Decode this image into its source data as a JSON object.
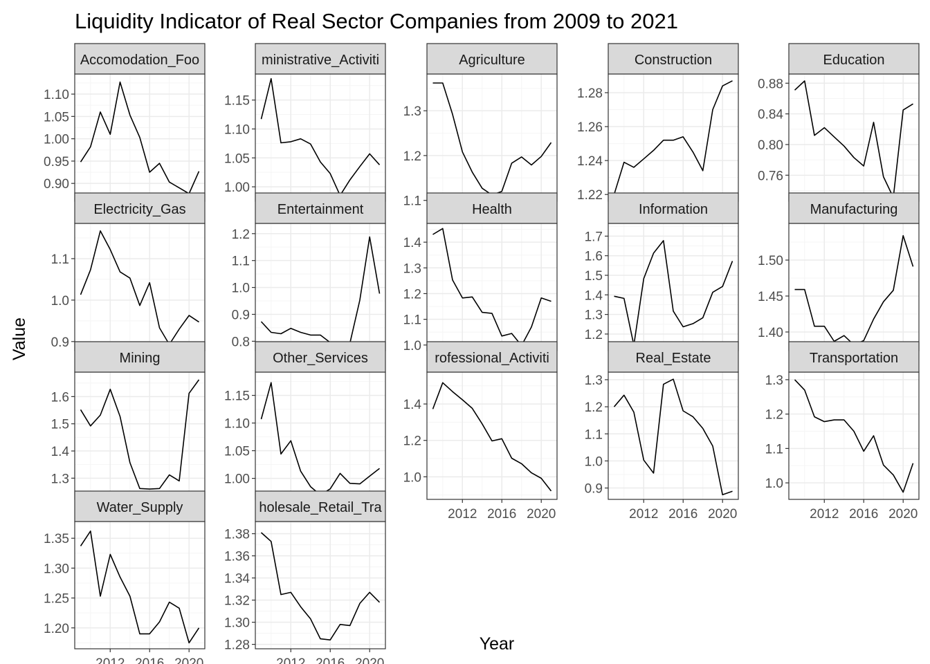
{
  "chart_data": {
    "type": "line",
    "title": "Liquidity Indicator of Real Sector Companies from 2009 to 2021",
    "xlabel": "Year",
    "ylabel": "Value",
    "x": [
      2009,
      2010,
      2011,
      2012,
      2013,
      2014,
      2015,
      2016,
      2017,
      2018,
      2019,
      2020,
      2021
    ],
    "xlim": [
      2008.4,
      2021.6
    ],
    "x_ticks": [
      "2012",
      "2016",
      "2020"
    ],
    "grid": true,
    "legend": "none",
    "colors": {
      "line": "#000000",
      "panel_border": "#333333",
      "strip_fill": "#d9d9d9",
      "grid_major": "#ebebeb",
      "grid_minor": "#f5f5f5"
    },
    "panels": [
      {
        "name": "Accomodation_Food",
        "strip_text": "Accomodation_Foo",
        "ylim": [
          0.86,
          1.145
        ],
        "y_ticks": [
          "0.90",
          "0.95",
          "1.00",
          "1.05",
          "1.10"
        ],
        "values": [
          0.948,
          0.982,
          1.06,
          1.01,
          1.127,
          1.053,
          1.003,
          0.925,
          0.945,
          0.903,
          0.89,
          0.877,
          0.927
        ]
      },
      {
        "name": "Administrative_Activities",
        "strip_text": "ministrative_Activiti",
        "ylim": [
          0.975,
          1.195
        ],
        "y_ticks": [
          "1.00",
          "1.05",
          "1.10",
          "1.15"
        ],
        "values": [
          1.117,
          1.187,
          1.076,
          1.078,
          1.083,
          1.074,
          1.043,
          1.023,
          0.985,
          1.012,
          1.035,
          1.057,
          1.038
        ]
      },
      {
        "name": "Agriculture",
        "strip_text": "Agriculture",
        "ylim": [
          1.098,
          1.382
        ],
        "y_ticks": [
          "1.1",
          "1.2",
          "1.3"
        ],
        "values": [
          1.362,
          1.362,
          1.292,
          1.208,
          1.163,
          1.127,
          1.112,
          1.12,
          1.183,
          1.197,
          1.179,
          1.198,
          1.229
        ]
      },
      {
        "name": "Construction",
        "strip_text": "Construction",
        "ylim": [
          1.216,
          1.291
        ],
        "y_ticks": [
          "1.22",
          "1.24",
          "1.26",
          "1.28"
        ],
        "values": [
          1.22,
          1.239,
          1.236,
          1.241,
          1.246,
          1.252,
          1.252,
          1.254,
          1.245,
          1.234,
          1.27,
          1.284,
          1.287
        ]
      },
      {
        "name": "Education",
        "strip_text": "Education",
        "ylim": [
          0.726,
          0.892
        ],
        "y_ticks": [
          "0.76",
          "0.80",
          "0.84",
          "0.88"
        ],
        "values": [
          0.871,
          0.883,
          0.812,
          0.822,
          0.81,
          0.798,
          0.783,
          0.772,
          0.829,
          0.758,
          0.731,
          0.845,
          0.853
        ]
      },
      {
        "name": "Electricity_Gas",
        "strip_text": "Electricity_Gas",
        "ylim": [
          0.878,
          1.185
        ],
        "y_ticks": [
          "0.9",
          "1.0",
          "1.1"
        ],
        "values": [
          1.013,
          1.073,
          1.167,
          1.122,
          1.068,
          1.053,
          0.987,
          1.042,
          0.933,
          0.893,
          0.93,
          0.963,
          0.947
        ]
      },
      {
        "name": "Entertainment",
        "strip_text": "Entertainment",
        "ylim": [
          0.765,
          1.238
        ],
        "y_ticks": [
          "0.8",
          "0.9",
          "1.0",
          "1.1",
          "1.2"
        ],
        "values": [
          0.873,
          0.833,
          0.828,
          0.848,
          0.833,
          0.823,
          0.823,
          0.795,
          0.796,
          0.793,
          0.953,
          1.188,
          0.977
        ]
      },
      {
        "name": "Health",
        "strip_text": "Health",
        "ylim": [
          0.978,
          1.473
        ],
        "y_ticks": [
          "1.0",
          "1.1",
          "1.2",
          "1.3",
          "1.4"
        ],
        "values": [
          1.43,
          1.453,
          1.253,
          1.183,
          1.187,
          1.127,
          1.123,
          1.035,
          1.045,
          0.998,
          1.07,
          1.183,
          1.17
        ]
      },
      {
        "name": "Information",
        "strip_text": "Information",
        "ylim": [
          1.115,
          1.765
        ],
        "y_ticks": [
          "1.2",
          "1.3",
          "1.4",
          "1.5",
          "1.6",
          "1.7"
        ],
        "values": [
          1.393,
          1.382,
          1.143,
          1.483,
          1.613,
          1.677,
          1.317,
          1.237,
          1.253,
          1.283,
          1.413,
          1.443,
          1.573
        ]
      },
      {
        "name": "Manufacturing",
        "strip_text": "Manufacturing",
        "ylim": [
          1.374,
          1.551
        ],
        "y_ticks": [
          "1.40",
          "1.45",
          "1.50"
        ],
        "values": [
          1.459,
          1.459,
          1.408,
          1.408,
          1.387,
          1.395,
          1.382,
          1.388,
          1.418,
          1.442,
          1.458,
          1.534,
          1.491
        ]
      },
      {
        "name": "Mining",
        "strip_text": "Mining",
        "ylim": [
          1.222,
          1.69
        ],
        "y_ticks": [
          "1.3",
          "1.4",
          "1.5",
          "1.6"
        ],
        "values": [
          1.552,
          1.492,
          1.532,
          1.627,
          1.527,
          1.357,
          1.262,
          1.26,
          1.262,
          1.312,
          1.29,
          1.612,
          1.662
        ]
      },
      {
        "name": "Other_Services",
        "strip_text": "Other_Services",
        "ylim": [
          0.962,
          1.192
        ],
        "y_ticks": [
          "1.00",
          "1.05",
          "1.10",
          "1.15"
        ],
        "values": [
          1.107,
          1.173,
          1.044,
          1.068,
          1.013,
          0.985,
          0.97,
          0.981,
          1.009,
          0.991,
          0.99,
          1.004,
          1.018
        ]
      },
      {
        "name": "Professional_Activities",
        "strip_text": "rofessional_Activiti",
        "ylim": [
          0.876,
          1.575
        ],
        "y_ticks": [
          "1.0",
          "1.2",
          "1.4"
        ],
        "values": [
          1.372,
          1.517,
          1.468,
          1.423,
          1.376,
          1.291,
          1.197,
          1.209,
          1.102,
          1.072,
          1.022,
          0.992,
          0.922
        ]
      },
      {
        "name": "Real_Estate",
        "strip_text": "Real_Estate",
        "ylim": [
          0.858,
          1.328
        ],
        "y_ticks": [
          "0.9",
          "1.0",
          "1.1",
          "1.2",
          "1.3"
        ],
        "values": [
          1.2,
          1.243,
          1.18,
          1.003,
          0.955,
          1.283,
          1.302,
          1.185,
          1.163,
          1.12,
          1.055,
          0.875,
          0.888
        ]
      },
      {
        "name": "Transportation",
        "strip_text": "Transportation",
        "ylim": [
          0.952,
          1.322
        ],
        "y_ticks": [
          "1.0",
          "1.1",
          "1.2",
          "1.3"
        ],
        "values": [
          1.3,
          1.27,
          1.192,
          1.178,
          1.183,
          1.183,
          1.15,
          1.092,
          1.137,
          1.052,
          1.023,
          0.973,
          1.057
        ]
      },
      {
        "name": "Water_Supply",
        "strip_text": "Water_Supply",
        "ylim": [
          1.165,
          1.378
        ],
        "y_ticks": [
          "1.20",
          "1.25",
          "1.30",
          "1.35"
        ],
        "values": [
          1.337,
          1.362,
          1.253,
          1.323,
          1.285,
          1.253,
          1.19,
          1.19,
          1.21,
          1.243,
          1.233,
          1.175,
          1.2
        ]
      },
      {
        "name": "Wholesale_Retail_Trade",
        "strip_text": "holesale_Retail_Tra",
        "ylim": [
          1.276,
          1.391
        ],
        "y_ticks": [
          "1.28",
          "1.30",
          "1.32",
          "1.34",
          "1.36",
          "1.38"
        ],
        "values": [
          1.381,
          1.373,
          1.325,
          1.327,
          1.314,
          1.303,
          1.285,
          1.284,
          1.298,
          1.297,
          1.317,
          1.327,
          1.318
        ]
      }
    ]
  }
}
